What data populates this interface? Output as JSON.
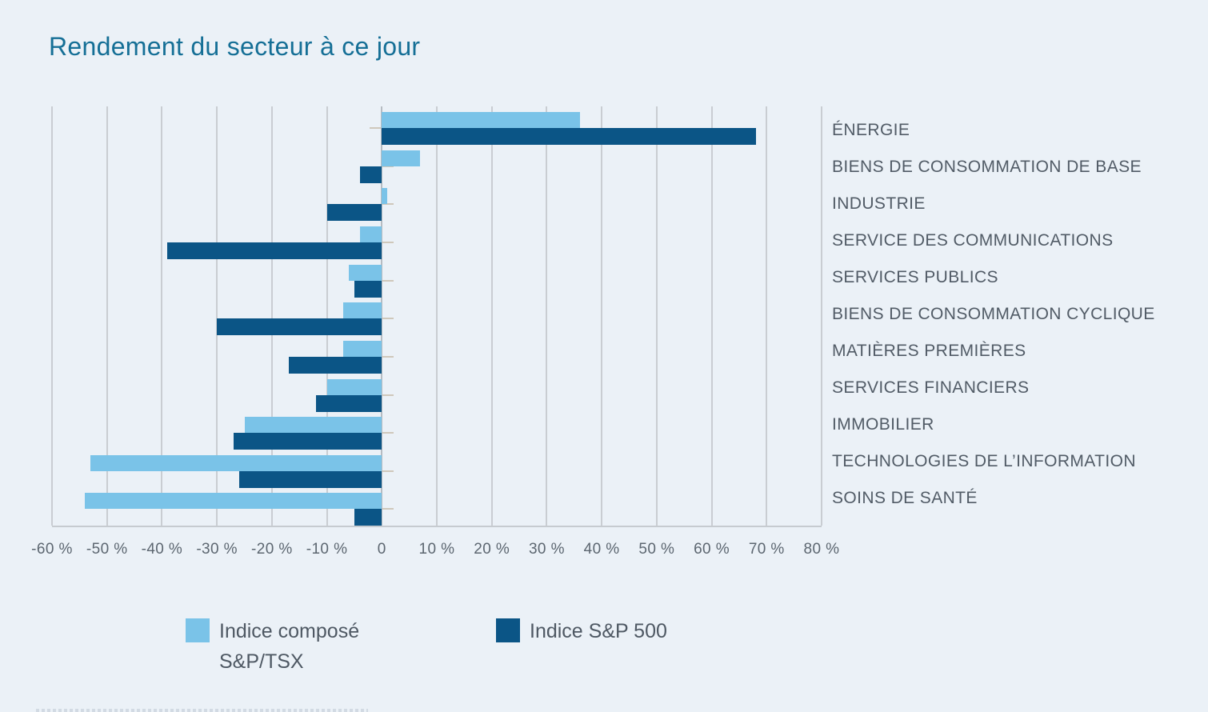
{
  "title": "Rendement du secteur à ce jour",
  "colors": {
    "background": "#ebf1f7",
    "title": "#156f96",
    "gridline": "#c9cdd2",
    "axis_text": "#5c6670",
    "category_text": "#515b66",
    "tsx_light_blue": "#7ac3e8",
    "sp500_dark_blue": "#0b5586"
  },
  "chart_data": {
    "type": "bar",
    "orientation": "horizontal",
    "title": "Rendement du secteur à ce jour",
    "unit": "%",
    "grid": true,
    "legend_position": "bottom",
    "xlim": [
      -60,
      80
    ],
    "x_tick_step": 10,
    "x_tick_labels": [
      "-60 %",
      "-50 %",
      "-40 %",
      "-30 %",
      "-20 %",
      "-10 %",
      "0",
      "10 %",
      "20 %",
      "30 %",
      "40 %",
      "50 %",
      "60 %",
      "70 %",
      "80 %"
    ],
    "categories": [
      "ÉNERGIE",
      "BIENS DE CONSOMMATION DE BASE",
      "INDUSTRIE",
      "SERVICE DES COMMUNICATIONS",
      "SERVICES PUBLICS",
      "BIENS DE CONSOMMATION CYCLIQUE",
      "MATIÈRES PREMIÈRES",
      "SERVICES FINANCIERS",
      "IMMOBILIER",
      "TECHNOLOGIES DE L’INFORMATION",
      "SOINS DE SANTÉ"
    ],
    "series": [
      {
        "name": "Indice composé S&P/TSX",
        "color": "#7ac3e8",
        "values": [
          36,
          7,
          1,
          -4,
          -6,
          -7,
          -7,
          -10,
          -25,
          -53,
          -54
        ]
      },
      {
        "name": "Indice S&P 500",
        "color": "#0b5586",
        "values": [
          68,
          -4,
          -10,
          -39,
          -5,
          -30,
          -17,
          -12,
          -27,
          -26,
          -5
        ]
      }
    ]
  },
  "legend": {
    "items": [
      {
        "label_line1": "Indice composé",
        "label_line2": "S&P/TSX",
        "color": "#7ac3e8"
      },
      {
        "label_line1": "Indice S&P 500",
        "label_line2": "",
        "color": "#0b5586"
      }
    ]
  }
}
